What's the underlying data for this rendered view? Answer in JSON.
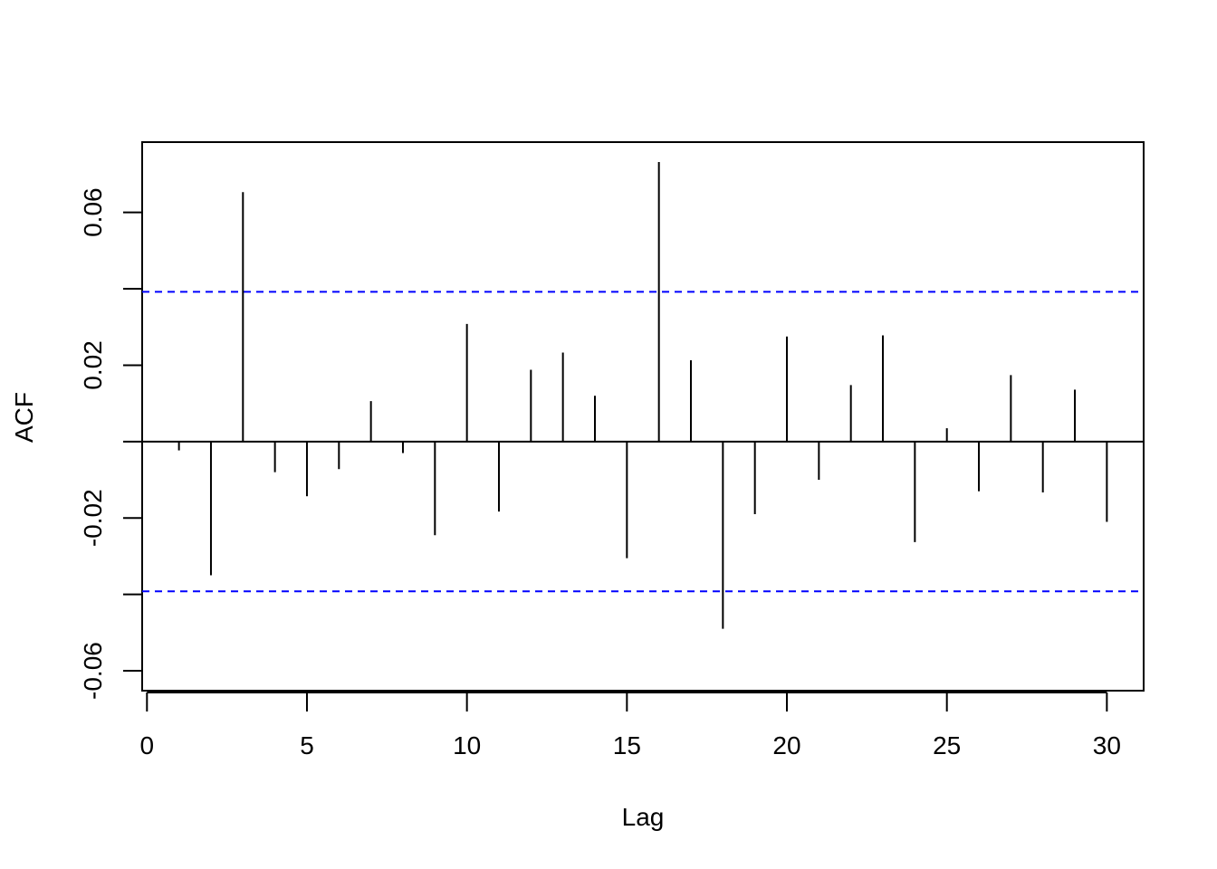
{
  "chart_data": {
    "type": "bar",
    "subtype": "acf-stem",
    "title": "",
    "xlabel": "Lag",
    "ylabel": "ACF",
    "xlim": [
      -0.15,
      31.15
    ],
    "ylim": [
      -0.0652,
      0.0784
    ],
    "x_ticks": [
      "0",
      "5",
      "10",
      "15",
      "20",
      "25",
      "30"
    ],
    "y_ticks": [
      "-0.06",
      "-0.02",
      "0.02",
      "0.06"
    ],
    "y_minor_ticks": [
      -0.04,
      0.0,
      0.04
    ],
    "grid": false,
    "confidence_bound": 0.0392,
    "confidence_color": "#0000ff",
    "stem_color": "#000000",
    "lags": [
      1,
      2,
      3,
      4,
      5,
      6,
      7,
      8,
      9,
      10,
      11,
      12,
      13,
      14,
      15,
      16,
      17,
      18,
      19,
      20,
      21,
      22,
      23,
      24,
      25,
      26,
      27,
      28,
      29,
      30
    ],
    "values": [
      -0.0023,
      -0.035,
      0.0653,
      -0.008,
      -0.0143,
      -0.0072,
      0.0106,
      -0.003,
      -0.0245,
      0.0308,
      -0.0183,
      0.0188,
      0.0233,
      0.012,
      -0.0305,
      0.0732,
      0.0213,
      -0.049,
      -0.019,
      0.0275,
      -0.01,
      0.0148,
      0.0278,
      -0.0263,
      0.0035,
      -0.013,
      0.0174,
      -0.0133,
      0.0136,
      -0.021
    ]
  }
}
